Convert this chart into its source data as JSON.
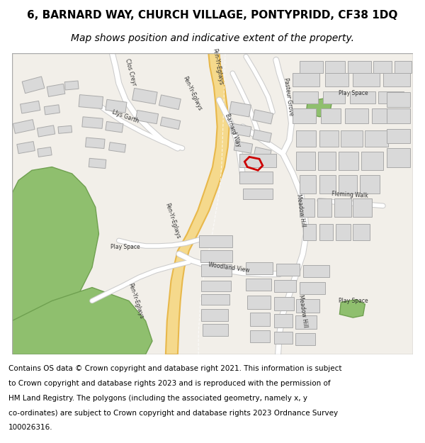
{
  "title_line1": "6, BARNARD WAY, CHURCH VILLAGE, PONTYPRIDD, CF38 1DQ",
  "title_line2": "Map shows position and indicative extent of the property.",
  "footer_lines": [
    "Contains OS data © Crown copyright and database right 2021. This information is subject",
    "to Crown copyright and database rights 2023 and is reproduced with the permission of",
    "HM Land Registry. The polygons (including the associated geometry, namely x, y",
    "co-ordinates) are subject to Crown copyright and database rights 2023 Ordnance Survey",
    "100026316."
  ],
  "map_bg": "#f2efe9",
  "road_major_color": "#f5d98c",
  "road_major_outline": "#e8b84b",
  "road_minor_color": "#ffffff",
  "building_fill": "#d9d9d9",
  "building_outline": "#aaaaaa",
  "green_fill": "#8fbf6e",
  "green_outline": "#6fa050",
  "property_outline": "#cc0000",
  "title_fontsize": 11,
  "subtitle_fontsize": 10,
  "footer_fontsize": 7.5,
  "title_color": "#000000",
  "footer_color": "#000000",
  "fig_bg": "#ffffff"
}
